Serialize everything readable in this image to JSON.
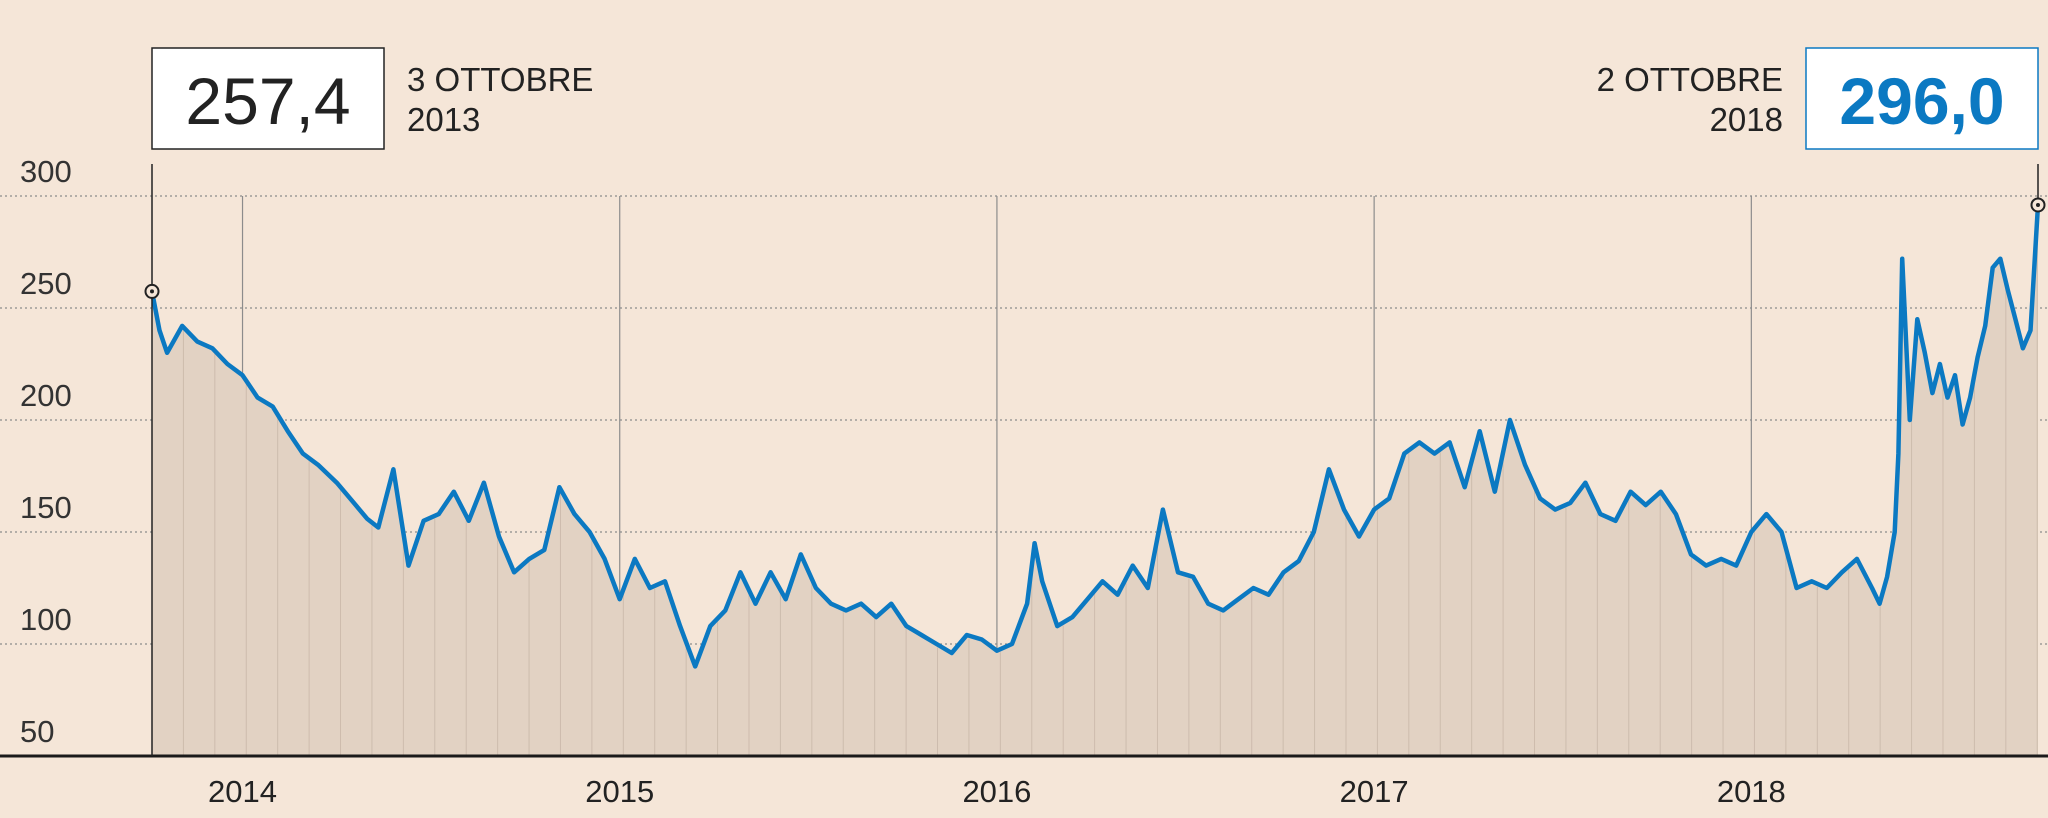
{
  "chart_data": {
    "type": "line",
    "title": "",
    "xlabel": "",
    "ylabel": "",
    "ylim": [
      50,
      300
    ],
    "yticks": [
      "300",
      "250",
      "200",
      "150",
      "100",
      "50"
    ],
    "ytick_values": [
      300,
      250,
      200,
      150,
      100,
      50
    ],
    "xticks": [
      "2014",
      "2015",
      "2016",
      "2017",
      "2018"
    ],
    "xtick_values": [
      2014.0,
      2015.0,
      2016.0,
      2017.0,
      2018.0
    ],
    "x_range": [
      2013.76,
      2018.76
    ],
    "grid": true,
    "fill_under_line": true,
    "colors": {
      "line": "#0b79c2",
      "fill": "#e2d2c3",
      "background": "#f5e6d8",
      "grid": "#8c8c8c"
    },
    "start_annotation": {
      "value": "257,4",
      "date_line1": "3 OTTOBRE",
      "date_line2": "2013",
      "x": 2013.76,
      "y": 257.4
    },
    "end_annotation": {
      "value": "296,0",
      "date_line1": "2 OTTOBRE",
      "date_line2": "2018",
      "x": 2018.76,
      "y": 296.0
    },
    "series": [
      {
        "x": [
          2013.76,
          2013.78,
          2013.8,
          2013.84,
          2013.88,
          2013.92,
          2013.96,
          2014.0,
          2014.04,
          2014.08,
          2014.12,
          2014.16,
          2014.2,
          2014.25,
          2014.3,
          2014.33,
          2014.36,
          2014.4,
          2014.44,
          2014.48,
          2014.52,
          2014.56,
          2014.6,
          2014.64,
          2014.68,
          2014.72,
          2014.76,
          2014.8,
          2014.84,
          2014.88,
          2014.92,
          2014.96,
          2015.0,
          2015.04,
          2015.08,
          2015.12,
          2015.16,
          2015.2,
          2015.24,
          2015.28,
          2015.32,
          2015.36,
          2015.4,
          2015.44,
          2015.48,
          2015.52,
          2015.56,
          2015.6,
          2015.64,
          2015.68,
          2015.72,
          2015.76,
          2015.8,
          2015.84,
          2015.88,
          2015.92,
          2015.96,
          2016.0,
          2016.04,
          2016.08,
          2016.1,
          2016.12,
          2016.16,
          2016.2,
          2016.24,
          2016.28,
          2016.32,
          2016.36,
          2016.4,
          2016.44,
          2016.48,
          2016.52,
          2016.56,
          2016.6,
          2016.64,
          2016.68,
          2016.72,
          2016.76,
          2016.8,
          2016.84,
          2016.88,
          2016.92,
          2016.96,
          2017.0,
          2017.04,
          2017.08,
          2017.12,
          2017.16,
          2017.2,
          2017.24,
          2017.28,
          2017.32,
          2017.36,
          2017.4,
          2017.44,
          2017.48,
          2017.52,
          2017.56,
          2017.6,
          2017.64,
          2017.68,
          2017.72,
          2017.76,
          2017.8,
          2017.84,
          2017.88,
          2017.92,
          2017.96,
          2018.0,
          2018.04,
          2018.08,
          2018.12,
          2018.16,
          2018.2,
          2018.24,
          2018.28,
          2018.32,
          2018.34,
          2018.36,
          2018.38,
          2018.39,
          2018.4,
          2018.42,
          2018.44,
          2018.46,
          2018.48,
          2018.5,
          2018.52,
          2018.54,
          2018.56,
          2018.58,
          2018.6,
          2018.62,
          2018.64,
          2018.66,
          2018.68,
          2018.7,
          2018.72,
          2018.74,
          2018.76
        ],
        "y": [
          257.4,
          240,
          230,
          242,
          235,
          232,
          225,
          220,
          210,
          206,
          195,
          185,
          180,
          172,
          162,
          156,
          152,
          178,
          135,
          155,
          158,
          168,
          155,
          172,
          148,
          132,
          138,
          142,
          170,
          158,
          150,
          138,
          120,
          138,
          125,
          128,
          108,
          90,
          108,
          115,
          132,
          118,
          132,
          120,
          140,
          125,
          118,
          115,
          118,
          112,
          118,
          108,
          104,
          100,
          96,
          104,
          102,
          97,
          100,
          118,
          145,
          128,
          108,
          112,
          120,
          128,
          122,
          135,
          125,
          160,
          132,
          130,
          118,
          115,
          120,
          125,
          122,
          132,
          137,
          150,
          178,
          160,
          148,
          160,
          165,
          185,
          190,
          185,
          190,
          170,
          195,
          168,
          200,
          180,
          165,
          160,
          163,
          172,
          158,
          155,
          168,
          162,
          168,
          158,
          140,
          135,
          138,
          135,
          150,
          158,
          150,
          125,
          128,
          125,
          132,
          138,
          125,
          118,
          130,
          150,
          185,
          272,
          200,
          245,
          230,
          212,
          225,
          210,
          220,
          198,
          210,
          228,
          242,
          268,
          272,
          258,
          245,
          232,
          240,
          296
        ]
      }
    ]
  }
}
